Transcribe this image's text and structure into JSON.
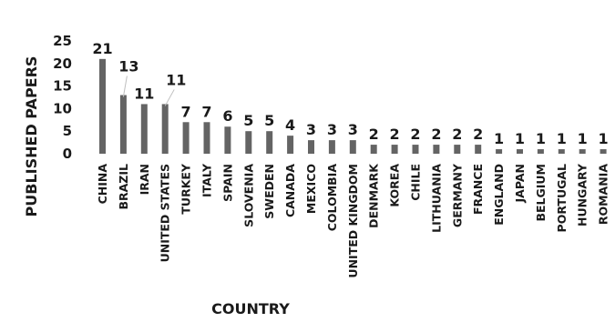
{
  "chart_data": {
    "type": "bar",
    "title": "",
    "xlabel": "COUNTRY",
    "ylabel": "PUBLISHED PAPERS",
    "ylim": [
      0,
      25
    ],
    "yticks": [
      0,
      5,
      10,
      15,
      20,
      25
    ],
    "grid": false,
    "bar_color": "#646464",
    "categories": [
      "CHINA",
      "BRAZIL",
      "IRAN",
      "UNITED STATES",
      "TURKEY",
      "ITALY",
      "SPAIN",
      "SLOVENIA",
      "SWEDEN",
      "CANADA",
      "MEXICO",
      "COLOMBIA",
      "UNITED KINGDOM",
      "DENMARK",
      "KOREA",
      "CHILE",
      "LITHUANIA",
      "GERMANY",
      "FRANCE",
      "ENGLAND",
      "JAPAN",
      "BELGIUM",
      "PORTUGAL",
      "HUNGARY",
      "ROMANIA"
    ],
    "values": [
      21,
      13,
      11,
      11,
      7,
      7,
      6,
      5,
      5,
      4,
      3,
      3,
      3,
      2,
      2,
      2,
      2,
      2,
      2,
      1,
      1,
      1,
      1,
      1,
      1
    ]
  }
}
